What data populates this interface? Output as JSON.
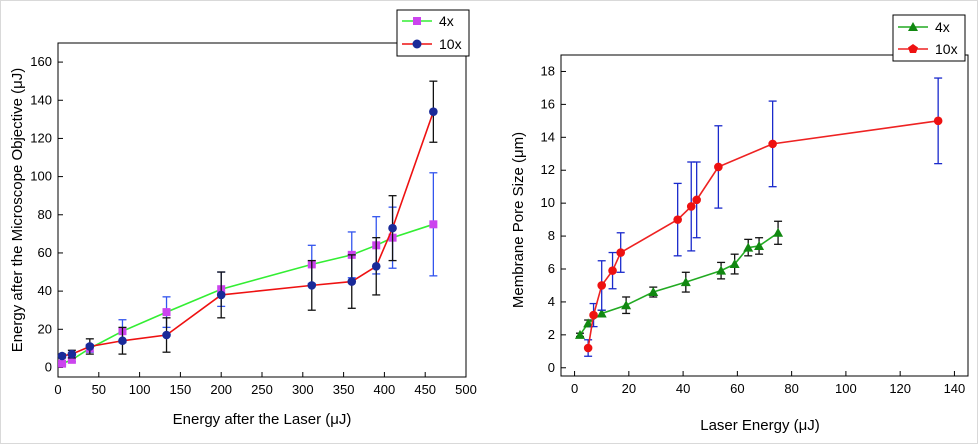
{
  "chart_data": [
    {
      "type": "line",
      "xlabel": "Energy after the Laser (μJ)",
      "ylabel": "Energy after the Microscope Objective (μJ)",
      "xlim": [
        0,
        500
      ],
      "ylim": [
        -5,
        170
      ],
      "xticks": [
        0,
        50,
        100,
        150,
        200,
        250,
        300,
        350,
        400,
        450,
        500
      ],
      "yticks": [
        0,
        20,
        40,
        60,
        80,
        100,
        120,
        140,
        160
      ],
      "legend_position": "top-right",
      "series": [
        {
          "name": "4x",
          "color": "#33ee33",
          "marker": "square",
          "marker_color": "#cc44ee",
          "errorbar_color": "#3355ee",
          "x": [
            5,
            17,
            39,
            79,
            133,
            200,
            311,
            360,
            390,
            410,
            460
          ],
          "y": [
            2,
            4,
            10,
            19,
            29,
            41,
            54,
            59,
            64,
            68,
            75
          ],
          "err": [
            0.5,
            1,
            2,
            6,
            8,
            9,
            10,
            12,
            15,
            16,
            27
          ]
        },
        {
          "name": "10x",
          "color": "#ee1111",
          "marker": "circle",
          "marker_color": "#1a2a99",
          "errorbar_color": "#111111",
          "x": [
            5,
            17,
            39,
            79,
            133,
            200,
            311,
            360,
            390,
            410,
            460
          ],
          "y": [
            6,
            7,
            11,
            14,
            17,
            38,
            43,
            45,
            53,
            73,
            134
          ],
          "err": [
            1,
            2,
            4,
            7,
            9,
            12,
            13,
            14,
            15,
            17,
            16
          ]
        }
      ]
    },
    {
      "type": "line",
      "xlabel": "Laser Energy (μJ)",
      "ylabel": "Membrane Pore Size (μm)",
      "xlim": [
        -5,
        145
      ],
      "ylim": [
        -0.5,
        19
      ],
      "xticks": [
        0,
        20,
        40,
        60,
        80,
        100,
        120,
        140
      ],
      "yticks": [
        0,
        2,
        4,
        6,
        8,
        10,
        12,
        14,
        16,
        18
      ],
      "legend_position": "top-right",
      "series": [
        {
          "name": "4x",
          "color": "#22aa22",
          "marker": "triangle",
          "marker_color": "#118811",
          "errorbar_color": "#111111",
          "x": [
            2,
            5,
            10,
            19,
            29,
            41,
            54,
            59,
            64,
            68,
            75
          ],
          "y": [
            2.0,
            2.7,
            3.3,
            3.8,
            4.6,
            5.2,
            5.9,
            6.3,
            7.3,
            7.4,
            8.2
          ],
          "err": [
            0.1,
            0.2,
            0.2,
            0.5,
            0.3,
            0.6,
            0.5,
            0.6,
            0.5,
            0.5,
            0.7
          ]
        },
        {
          "name": "10x",
          "color": "#ee2222",
          "marker": "circle",
          "marker_color": "#ee1111",
          "errorbar_color": "#1a2acc",
          "x": [
            5,
            7,
            10,
            14,
            17,
            38,
            43,
            45,
            53,
            73,
            134
          ],
          "y": [
            1.2,
            3.2,
            5.0,
            5.9,
            7.0,
            9.0,
            9.8,
            10.2,
            12.2,
            13.6,
            15.0
          ],
          "err": [
            0.5,
            0.7,
            1.5,
            1.1,
            1.2,
            2.2,
            2.7,
            2.3,
            2.5,
            2.6,
            2.6
          ]
        }
      ]
    }
  ]
}
